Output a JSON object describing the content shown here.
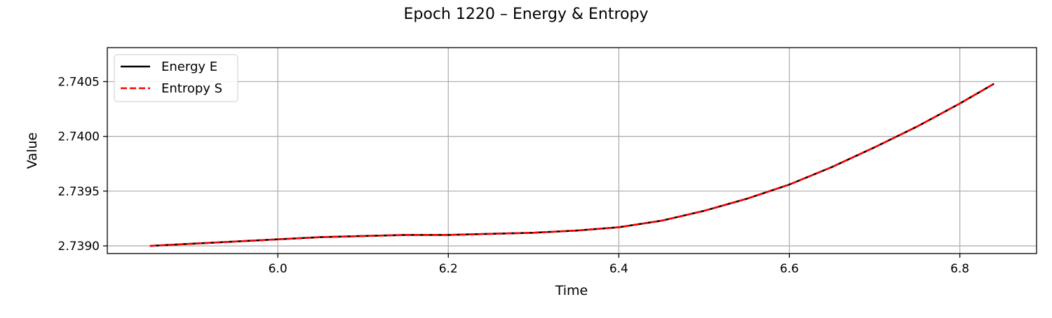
{
  "chart_data": {
    "type": "line",
    "title": "Epoch 1220 – Energy & Entropy",
    "xlabel": "Time",
    "ylabel": "Value",
    "xlim": [
      5.8,
      6.89
    ],
    "ylim": [
      2.73893,
      2.74081
    ],
    "xticks": [
      6.0,
      6.2,
      6.4,
      6.6,
      6.8
    ],
    "xtick_labels": [
      "6.0",
      "6.2",
      "6.4",
      "6.6",
      "6.8"
    ],
    "yticks": [
      2.739,
      2.7395,
      2.74,
      2.7405
    ],
    "ytick_labels": [
      "2.7390",
      "2.7395",
      "2.7400",
      "2.7405"
    ],
    "grid": true,
    "legend_position": "top-left",
    "x": [
      5.85,
      5.9,
      5.95,
      6.0,
      6.05,
      6.1,
      6.15,
      6.2,
      6.25,
      6.3,
      6.35,
      6.4,
      6.45,
      6.5,
      6.55,
      6.6,
      6.65,
      6.7,
      6.75,
      6.8,
      6.84
    ],
    "series": [
      {
        "name": "Energy E",
        "color": "#000000",
        "style": "solid",
        "values": [
          2.739,
          2.73902,
          2.73904,
          2.73906,
          2.73908,
          2.73909,
          2.7391,
          2.7391,
          2.73911,
          2.73912,
          2.73914,
          2.73917,
          2.73923,
          2.73932,
          2.73943,
          2.73956,
          2.73972,
          2.7399,
          2.74009,
          2.7403,
          2.74048
        ]
      },
      {
        "name": "Entropy S",
        "color": "#ff0000",
        "style": "dashed",
        "values": [
          2.739,
          2.73902,
          2.73904,
          2.73906,
          2.73908,
          2.73909,
          2.7391,
          2.7391,
          2.73911,
          2.73912,
          2.73914,
          2.73917,
          2.73923,
          2.73932,
          2.73943,
          2.73956,
          2.73972,
          2.7399,
          2.74009,
          2.7403,
          2.74048
        ]
      }
    ]
  }
}
